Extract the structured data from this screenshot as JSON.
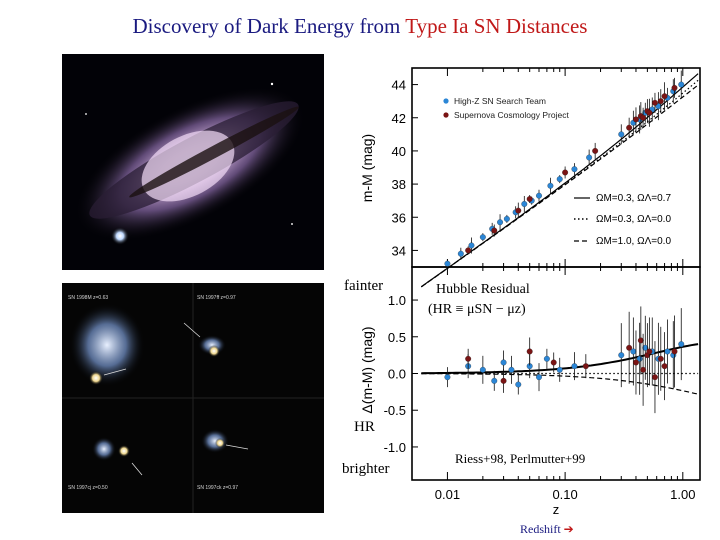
{
  "title": {
    "part1": "Discovery of Dark Energy from",
    "part2": "Type Ia SN Distances"
  },
  "colors": {
    "title_blue": "#1a1a80",
    "title_red": "#c01818",
    "high_z": "#2b86d6",
    "scp": "#7a1414",
    "redshift_label": "#1a1a80"
  },
  "images": {
    "galaxy": "spiral galaxy with supernova",
    "sn_panels": [
      {
        "name": "SN 1998M",
        "z": "z=0.63"
      },
      {
        "name": "SN 1997ff",
        "z": "z=0.97"
      },
      {
        "name": "SN 1997cj",
        "z": "z=0.50"
      },
      {
        "name": "SN 1997ck",
        "z": "z=0.97"
      }
    ]
  },
  "side_labels": {
    "fainter": "fainter",
    "hr": "HR",
    "brighter": "brighter"
  },
  "annotations": {
    "hubble_residual": "Hubble Residual",
    "hr_formula": "(HR ≡ μSN − μz)",
    "refs": "Riess+98, Perlmutter+99",
    "redshift": "Redshift"
  },
  "chart_data": [
    {
      "type": "scatter",
      "title": "",
      "xlabel": "",
      "ylabel": "m-M (mag)",
      "xscale": "log",
      "xlim": [
        0.005,
        1.4
      ],
      "ylim": [
        33,
        45
      ],
      "yticks": [
        34,
        36,
        38,
        40,
        42,
        44
      ],
      "legend_position": "top-left",
      "series": [
        {
          "name": "High-Z SN Search Team",
          "marker": "circle",
          "color": "#2b86d6",
          "x": [
            0.01,
            0.013,
            0.016,
            0.02,
            0.024,
            0.028,
            0.032,
            0.038,
            0.045,
            0.052,
            0.06,
            0.075,
            0.09,
            0.12,
            0.16,
            0.3,
            0.38,
            0.43,
            0.48,
            0.55,
            0.62,
            0.74,
            0.83,
            0.97
          ],
          "y": [
            33.2,
            33.8,
            34.3,
            34.8,
            35.3,
            35.7,
            35.9,
            36.3,
            36.8,
            37.0,
            37.3,
            37.9,
            38.3,
            38.9,
            39.6,
            41.0,
            41.7,
            41.9,
            42.3,
            42.5,
            42.7,
            43.2,
            43.6,
            44.0
          ]
        },
        {
          "name": "Supernova Cosmology Project",
          "marker": "circle",
          "color": "#7a1414",
          "x": [
            0.015,
            0.025,
            0.04,
            0.05,
            0.1,
            0.18,
            0.35,
            0.4,
            0.44,
            0.46,
            0.5,
            0.52,
            0.58,
            0.65,
            0.7,
            0.85
          ],
          "y": [
            34.0,
            35.2,
            36.4,
            37.1,
            38.7,
            40.0,
            41.4,
            41.9,
            42.1,
            42.0,
            42.4,
            42.3,
            42.9,
            43.0,
            43.3,
            43.8
          ]
        }
      ],
      "models": [
        {
          "name": "ΩM=0.3, ΩΛ=0.7",
          "style": "solid"
        },
        {
          "name": "ΩM=0.3, ΩΛ=0.0",
          "style": "dotted"
        },
        {
          "name": "ΩM=1.0, ΩΛ=0.0",
          "style": "dashed"
        }
      ]
    },
    {
      "type": "scatter",
      "title": "",
      "xlabel": "z",
      "ylabel": "Δ(m-M) (mag)",
      "xscale": "log",
      "xlim": [
        0.005,
        1.4
      ],
      "ylim": [
        -1.45,
        1.45
      ],
      "yticks": [
        1.0,
        0.5,
        0.0,
        -0.5,
        -1.0
      ],
      "xticks": [
        0.01,
        0.1,
        1.0
      ],
      "xticklabels": [
        "0.01",
        "0.10",
        "1.00"
      ],
      "series": [
        {
          "name": "High-Z SN Search Team",
          "color": "#2b86d6",
          "x": [
            0.01,
            0.015,
            0.02,
            0.025,
            0.03,
            0.035,
            0.04,
            0.05,
            0.06,
            0.07,
            0.09,
            0.12,
            0.3,
            0.38,
            0.43,
            0.48,
            0.55,
            0.62,
            0.74,
            0.83,
            0.97
          ],
          "y": [
            -0.05,
            0.1,
            0.05,
            -0.1,
            0.15,
            0.05,
            -0.15,
            0.1,
            -0.05,
            0.2,
            0.05,
            0.1,
            0.25,
            0.3,
            0.2,
            0.35,
            0.3,
            0.2,
            0.3,
            0.25,
            0.4
          ]
        },
        {
          "name": "Supernova Cosmology Project",
          "color": "#7a1414",
          "x": [
            0.015,
            0.03,
            0.05,
            0.08,
            0.15,
            0.35,
            0.4,
            0.44,
            0.46,
            0.5,
            0.52,
            0.58,
            0.65,
            0.7,
            0.85
          ],
          "y": [
            0.2,
            -0.1,
            0.3,
            0.15,
            0.1,
            0.35,
            0.15,
            0.45,
            0.05,
            0.25,
            0.3,
            -0.05,
            0.2,
            0.1,
            0.3
          ]
        }
      ],
      "models": [
        {
          "name": "ΩM=0.3, ΩΛ=0.7",
          "style": "solid"
        },
        {
          "name": "ΩM=0.3, ΩΛ=0.0",
          "style": "dotted"
        },
        {
          "name": "ΩM=1.0, ΩΛ=0.0",
          "style": "dashed"
        }
      ]
    }
  ]
}
